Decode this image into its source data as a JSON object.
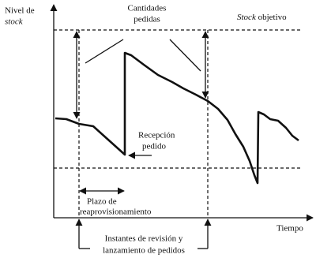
{
  "axes": {
    "y_label": [
      "Nivel de",
      "stock"
    ],
    "x_label": "Tiempo"
  },
  "labels": {
    "ordered_quantities": [
      "Cantidades",
      "pedidas"
    ],
    "target_stock": {
      "italic": "Stock",
      "normal": "objetivo"
    },
    "order_reception": [
      "Recepción",
      "pedido"
    ],
    "lead_time": [
      "Plazo de",
      "reaprovisionamiento"
    ],
    "review_instants": [
      "Instantes de revisión y",
      "lanzamiento de pedidos"
    ]
  }
}
